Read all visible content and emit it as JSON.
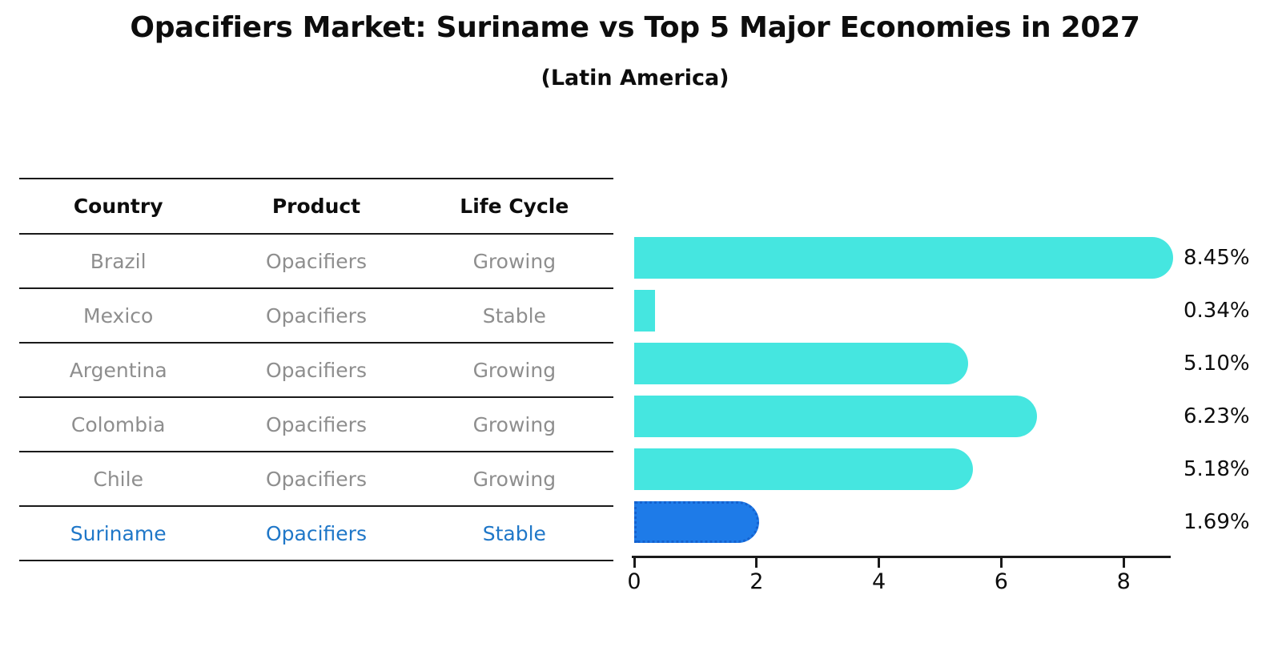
{
  "title": "Opacifiers Market: Suriname vs Top 5 Major Economies in 2027",
  "subtitle": "(Latin America)",
  "table": {
    "headers": [
      "Country",
      "Product",
      "Life Cycle"
    ],
    "rows": [
      {
        "country": "Brazil",
        "product": "Opacifiers",
        "life_cycle": "Growing",
        "highlight": false
      },
      {
        "country": "Mexico",
        "product": "Opacifiers",
        "life_cycle": "Stable",
        "highlight": false
      },
      {
        "country": "Argentina",
        "product": "Opacifiers",
        "life_cycle": "Growing",
        "highlight": false
      },
      {
        "country": "Colombia",
        "product": "Opacifiers",
        "life_cycle": "Growing",
        "highlight": false
      },
      {
        "country": "Chile",
        "product": "Opacifiers",
        "life_cycle": "Growing",
        "highlight": false
      },
      {
        "country": "Suriname",
        "product": "Opacifiers",
        "life_cycle": "Stable",
        "highlight": true
      }
    ]
  },
  "chart_data": {
    "type": "bar",
    "orientation": "horizontal",
    "categories": [
      "Brazil",
      "Mexico",
      "Argentina",
      "Colombia",
      "Chile",
      "Suriname"
    ],
    "values": [
      8.45,
      0.34,
      5.1,
      6.23,
      5.18,
      1.69
    ],
    "value_labels": [
      "8.45%",
      "0.34%",
      "5.10%",
      "6.23%",
      "5.18%",
      "1.69%"
    ],
    "highlight_index": 5,
    "x_ticks": [
      0,
      2,
      4,
      6,
      8
    ],
    "xlim": [
      0,
      8.75
    ],
    "grid": false,
    "bar_color": "#45e6e0",
    "highlight_bar_color": "#1e7be8",
    "highlight_bar_border_color": "#1461cf",
    "highlight_text_color": "#1f77c8",
    "muted_text_color": "#8e8e8e",
    "line_color": "#1a1a1a"
  }
}
